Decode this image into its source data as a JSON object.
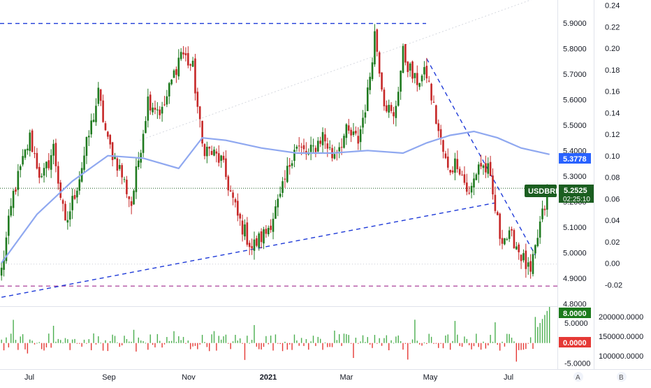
{
  "chart_data": {
    "type": "candlestick",
    "symbol": "USDBRL",
    "last_price": "5.2525",
    "countdown": "02:25:10",
    "sma_value": "5.3778",
    "price_axis": {
      "ylim": [
        4.79,
        5.99
      ],
      "ticks": [
        "5.9000",
        "5.8000",
        "5.7000",
        "5.6000",
        "5.5000",
        "5.4000",
        "5.3000",
        "5.2000",
        "5.1000",
        "5.0000",
        "4.9000",
        "4.8000"
      ]
    },
    "secondary_axis": {
      "ylim": [
        -0.04,
        0.245
      ],
      "ticks": [
        "0.24",
        "0.22",
        "0.20",
        "0.18",
        "0.16",
        "0.14",
        "0.12",
        "0.10",
        "0.08",
        "0.06",
        "0.04",
        "0.02",
        "0.00",
        "-0.02"
      ]
    },
    "x_labels": [
      "Jul",
      "Sep",
      "Nov",
      "2021",
      "Mar",
      "May",
      "Jul"
    ],
    "horizontal_levels": {
      "resistance": 5.898,
      "support": 4.869,
      "dotted_baseline": 4.955
    },
    "trendlines": [
      {
        "name": "rising",
        "from": [
          0,
          4.825
        ],
        "to": [
          209,
          5.195
        ]
      },
      {
        "name": "falling",
        "from": [
          180,
          5.76
        ],
        "to": [
          226,
          4.99
        ]
      }
    ],
    "candles_ohlc_seed": {
      "anchors": [
        [
          0,
          4.93
        ],
        [
          5,
          5.23
        ],
        [
          12,
          5.45
        ],
        [
          17,
          5.28
        ],
        [
          22,
          5.41
        ],
        [
          27,
          5.1
        ],
        [
          33,
          5.3
        ],
        [
          41,
          5.62
        ],
        [
          45,
          5.43
        ],
        [
          50,
          5.33
        ],
        [
          55,
          5.19
        ],
        [
          62,
          5.6
        ],
        [
          68,
          5.55
        ],
        [
          76,
          5.79
        ],
        [
          81,
          5.72
        ],
        [
          85,
          5.42
        ],
        [
          93,
          5.36
        ],
        [
          100,
          5.14
        ],
        [
          106,
          5.02
        ],
        [
          112,
          5.08
        ],
        [
          118,
          5.21
        ],
        [
          124,
          5.42
        ],
        [
          130,
          5.38
        ],
        [
          136,
          5.46
        ],
        [
          140,
          5.38
        ],
        [
          146,
          5.47
        ],
        [
          151,
          5.44
        ],
        [
          155,
          5.62
        ],
        [
          158,
          5.86
        ],
        [
          162,
          5.6
        ],
        [
          166,
          5.52
        ],
        [
          170,
          5.78
        ],
        [
          175,
          5.67
        ],
        [
          180,
          5.7
        ],
        [
          186,
          5.43
        ],
        [
          189,
          5.32
        ],
        [
          193,
          5.36
        ],
        [
          198,
          5.22
        ],
        [
          202,
          5.35
        ],
        [
          206,
          5.32
        ],
        [
          211,
          5.07
        ],
        [
          217,
          5.05
        ],
        [
          221,
          4.97
        ],
        [
          224,
          4.91
        ],
        [
          228,
          5.11
        ],
        [
          232,
          5.25
        ]
      ]
    },
    "sma_line": [
      [
        0,
        4.96
      ],
      [
        15,
        5.15
      ],
      [
        30,
        5.28
      ],
      [
        45,
        5.38
      ],
      [
        60,
        5.37
      ],
      [
        75,
        5.33
      ],
      [
        85,
        5.45
      ],
      [
        95,
        5.44
      ],
      [
        110,
        5.41
      ],
      [
        125,
        5.39
      ],
      [
        140,
        5.39
      ],
      [
        155,
        5.4
      ],
      [
        170,
        5.39
      ],
      [
        180,
        5.43
      ],
      [
        190,
        5.46
      ],
      [
        200,
        5.475
      ],
      [
        210,
        5.45
      ],
      [
        220,
        5.41
      ],
      [
        232,
        5.385
      ]
    ],
    "volume_panel": {
      "ylim": [
        -6.5,
        9
      ],
      "ticks": [
        "5.0000",
        "0.0000",
        "-5.0000"
      ],
      "current_high": "8.0000",
      "current_low": "0.0000",
      "right_ticks": [
        "200000.0000",
        "150000.0000",
        "100000.0000"
      ]
    }
  },
  "footer": {
    "log_button": "A",
    "settings_button": "B"
  }
}
